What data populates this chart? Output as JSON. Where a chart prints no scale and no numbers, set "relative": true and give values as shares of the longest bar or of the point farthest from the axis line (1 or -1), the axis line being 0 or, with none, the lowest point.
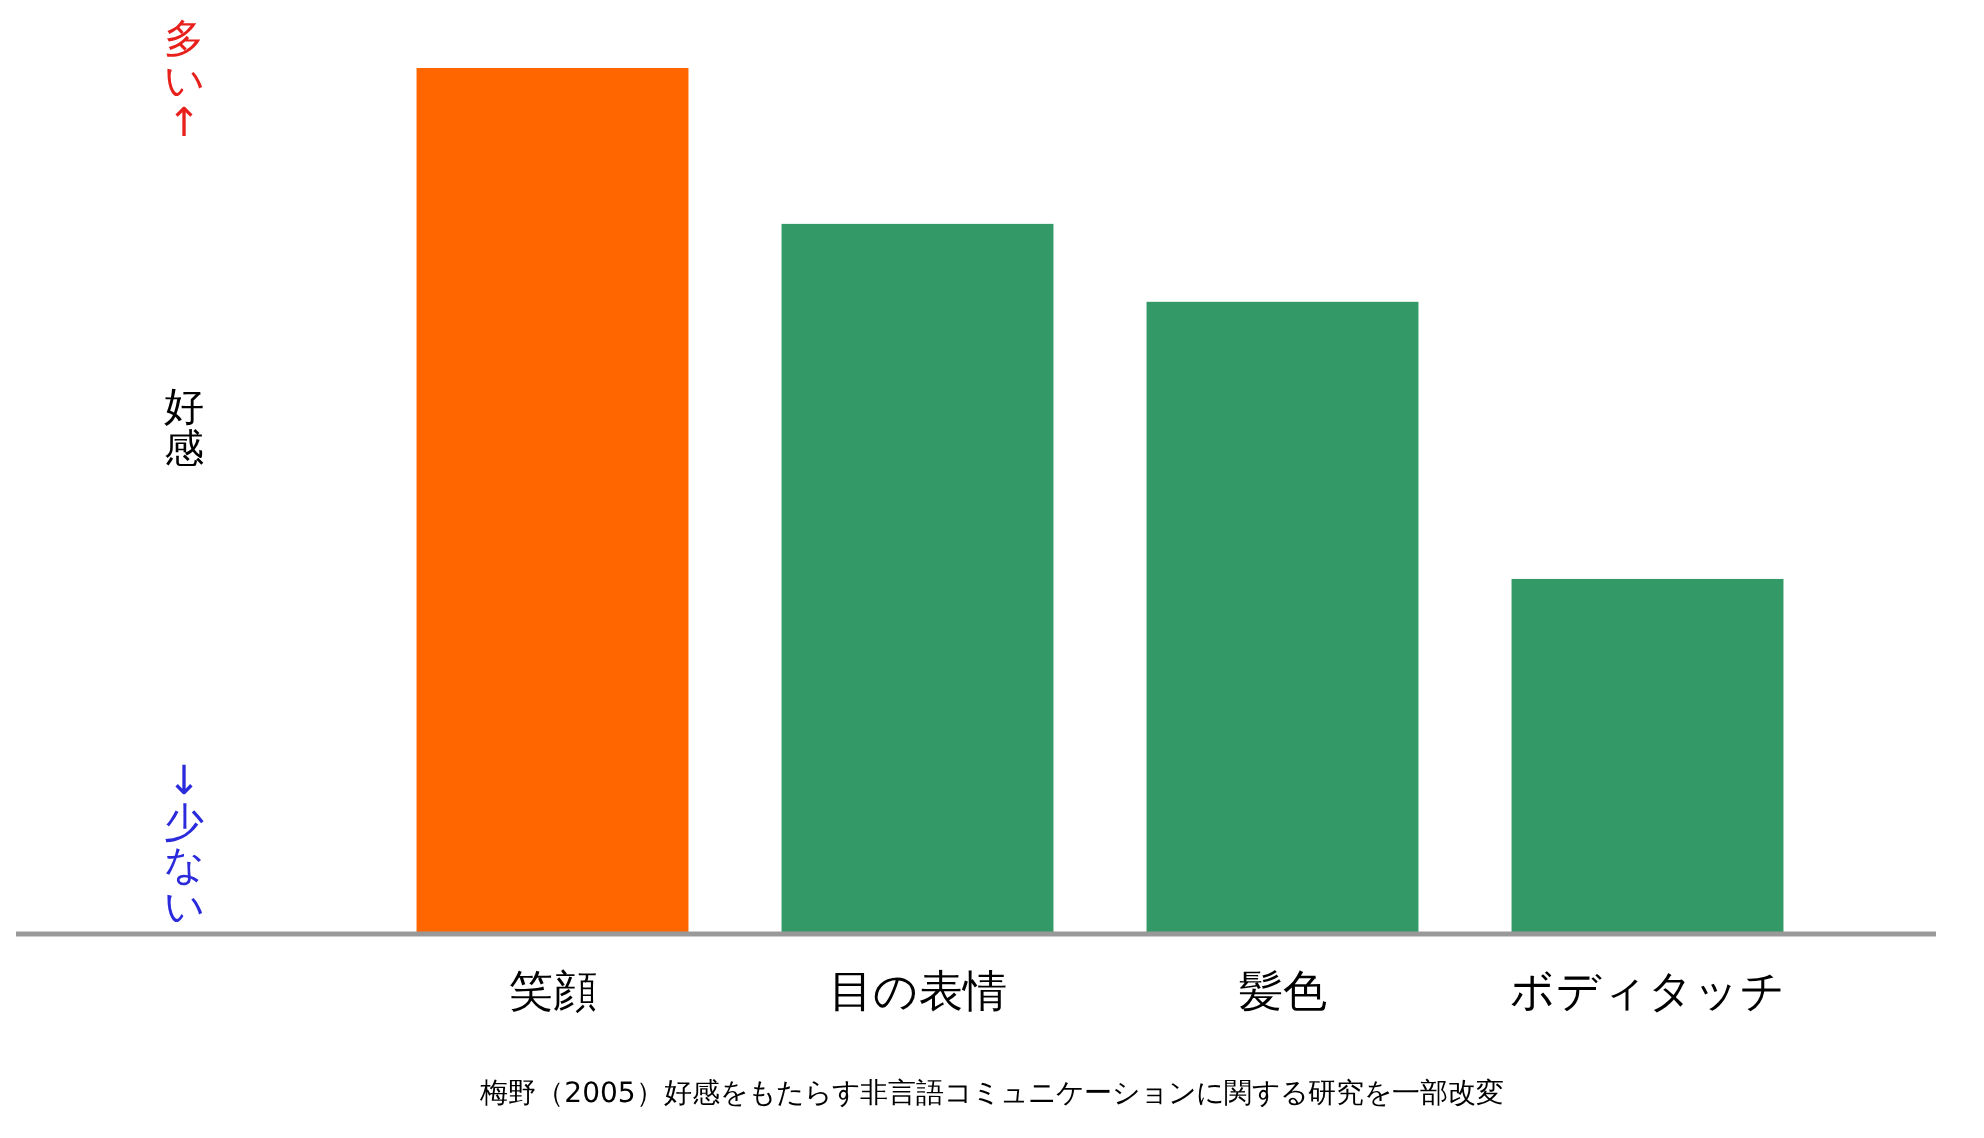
{
  "chart_data": {
    "type": "bar",
    "relative": true,
    "ylabel": "好感",
    "categories": [
      "笑顔",
      "目の表情",
      "髪色",
      "ボディタッチ"
    ],
    "values": [
      1,
      0.82,
      0.73,
      0.41
    ],
    "colors": [
      "#ff6600",
      "#339966",
      "#339966",
      "#339966"
    ],
    "annotations": [
      "多い↑",
      "↓少ない",
      "梅野（2005）好感をもたらす非言語コミュニケーションに関する研究を一部改変"
    ]
  }
}
